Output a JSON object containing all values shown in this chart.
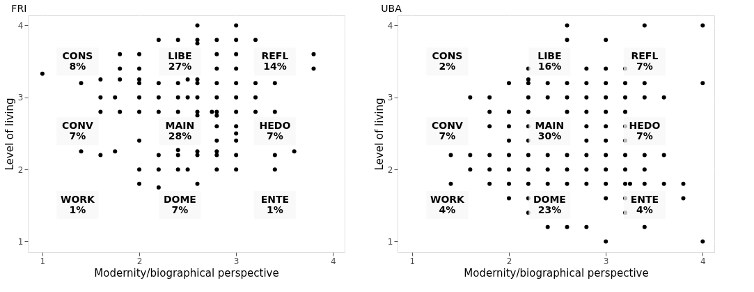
{
  "chart_data": [
    {
      "type": "scatter",
      "title": "FRI",
      "xlabel": "Modernity/biographical perspective",
      "ylabel": "Level of living",
      "xlim": [
        0.85,
        4.12
      ],
      "ylim": [
        0.85,
        4.14
      ],
      "xticks": [
        1,
        2,
        3,
        4
      ],
      "yticks": [
        1,
        2,
        3,
        4
      ],
      "grid": true,
      "marker": "circle",
      "color": "#000000",
      "x": [
        1.0,
        2.2,
        2.4,
        1.8,
        2.0,
        1.8,
        2.0,
        1.6,
        1.8,
        2.0,
        2.0,
        1.4,
        2.2,
        2.4,
        1.6,
        1.75,
        2.0,
        2.2,
        2.4,
        1.6,
        1.8,
        2.0,
        2.2,
        2.4,
        2.0,
        1.4,
        1.6,
        1.75,
        2.2,
        2.4,
        2.4,
        2.0,
        2.2,
        2.4,
        2.0,
        2.2,
        2.6,
        3.0,
        2.6,
        2.8,
        3.0,
        3.2,
        2.6,
        2.8,
        3.0,
        3.8,
        2.8,
        3.0,
        3.8,
        2.5,
        2.6,
        2.6,
        2.8,
        3.0,
        3.2,
        3.4,
        2.5,
        2.6,
        2.8,
        3.0,
        3.2,
        2.6,
        2.6,
        2.75,
        2.8,
        2.8,
        3.0,
        3.2,
        3.4,
        2.8,
        3.0,
        3.0,
        3.0,
        2.8,
        2.6,
        2.6,
        2.8,
        2.8,
        3.0,
        3.4,
        3.6,
        2.5,
        2.8,
        3.0,
        3.4,
        2.6
      ],
      "values": [
        3.33,
        3.8,
        3.8,
        3.6,
        3.6,
        3.4,
        3.4,
        3.25,
        3.25,
        3.25,
        3.2,
        3.2,
        3.2,
        3.2,
        3.0,
        3.0,
        3.0,
        3.0,
        3.0,
        2.8,
        2.8,
        2.8,
        2.8,
        2.8,
        2.4,
        2.25,
        2.2,
        2.25,
        2.2,
        2.27,
        2.2,
        2.0,
        2.0,
        2.0,
        1.8,
        1.75,
        4.0,
        4.0,
        3.8,
        3.8,
        3.8,
        3.8,
        3.75,
        3.6,
        3.6,
        3.6,
        3.4,
        3.4,
        3.4,
        3.25,
        3.25,
        3.2,
        3.2,
        3.2,
        3.2,
        3.2,
        3.0,
        3.0,
        3.0,
        3.0,
        3.0,
        2.8,
        2.75,
        2.8,
        2.8,
        2.75,
        2.8,
        2.8,
        2.8,
        2.6,
        2.6,
        2.5,
        2.4,
        2.4,
        2.25,
        2.2,
        2.25,
        2.2,
        2.2,
        2.2,
        2.25,
        2.0,
        2.0,
        2.0,
        2.0,
        1.8
      ],
      "annotations": [
        "CONS\n8%",
        "LIBE\n27%",
        "REFL\n14%",
        "CONV\n7%",
        "MAIN\n28%",
        "HEDO\n7%",
        "WORK\n1%",
        "DOME\n7%",
        "ENTE\n1%"
      ]
    },
    {
      "type": "scatter",
      "title": "UBA",
      "xlabel": "Modernity/biographical perspective",
      "ylabel": "Level of living",
      "xlim": [
        0.85,
        4.12
      ],
      "ylim": [
        0.85,
        4.14
      ],
      "xticks": [
        1,
        2,
        3,
        4
      ],
      "yticks": [
        1,
        2,
        3,
        4
      ],
      "grid": true,
      "marker": "circle",
      "color": "#000000",
      "x": [
        2.2,
        2.2,
        2.2,
        2.0,
        1.6,
        1.8,
        2.2,
        1.8,
        2.0,
        2.2,
        1.8,
        2.0,
        2.2,
        2.0,
        2.2,
        1.4,
        1.6,
        1.8,
        2.0,
        2.2,
        1.6,
        1.8,
        2.0,
        2.2,
        1.4,
        1.8,
        2.0,
        2.2,
        2.0,
        2.2,
        2.2,
        2.6,
        3.4,
        4.0,
        2.6,
        3.0,
        2.8,
        3.0,
        3.2,
        2.4,
        2.6,
        2.8,
        3.0,
        3.2,
        3.4,
        4.0,
        2.4,
        2.6,
        2.8,
        3.0,
        3.2,
        3.4,
        3.6,
        2.6,
        2.8,
        3.0,
        3.2,
        2.8,
        3.0,
        3.2,
        2.8,
        3.0,
        3.2,
        2.4,
        2.6,
        2.8,
        3.0,
        3.2,
        3.4,
        3.6,
        2.4,
        2.6,
        2.8,
        3.0,
        3.2,
        3.4,
        2.4,
        2.6,
        2.8,
        3.0,
        3.2,
        3.25,
        3.4,
        3.6,
        3.8,
        3.0,
        3.2,
        3.8,
        3.2,
        2.4,
        2.6,
        2.8,
        3.4,
        3.0,
        4.0
      ],
      "values": [
        3.4,
        3.25,
        3.2,
        3.2,
        3.0,
        3.0,
        3.0,
        2.8,
        2.8,
        2.8,
        2.6,
        2.6,
        2.6,
        2.4,
        2.4,
        2.2,
        2.2,
        2.2,
        2.2,
        2.2,
        2.0,
        2.0,
        2.0,
        2.0,
        1.8,
        1.8,
        1.8,
        1.8,
        1.6,
        1.6,
        1.4,
        4.0,
        4.0,
        4.0,
        3.8,
        3.8,
        3.4,
        3.4,
        3.4,
        3.2,
        3.2,
        3.2,
        3.2,
        3.2,
        3.2,
        3.2,
        3.0,
        3.0,
        3.0,
        3.0,
        3.0,
        3.0,
        3.0,
        2.8,
        2.8,
        2.8,
        2.8,
        2.6,
        2.6,
        2.6,
        2.4,
        2.4,
        2.4,
        2.2,
        2.2,
        2.2,
        2.2,
        2.2,
        2.2,
        2.2,
        2.0,
        2.0,
        2.0,
        2.0,
        2.0,
        2.0,
        1.8,
        1.8,
        1.8,
        1.8,
        1.8,
        1.8,
        1.8,
        1.8,
        1.8,
        1.6,
        1.6,
        1.6,
        1.4,
        1.2,
        1.2,
        1.2,
        1.2,
        1.0,
        1.0
      ],
      "annotations": [
        "CONS\n2%",
        "LIBE\n16%",
        "REFL\n7%",
        "CONV\n7%",
        "MAIN\n30%",
        "HEDO\n7%",
        "WORK\n4%",
        "DOME\n23%",
        "ENTE\n4%"
      ]
    }
  ]
}
